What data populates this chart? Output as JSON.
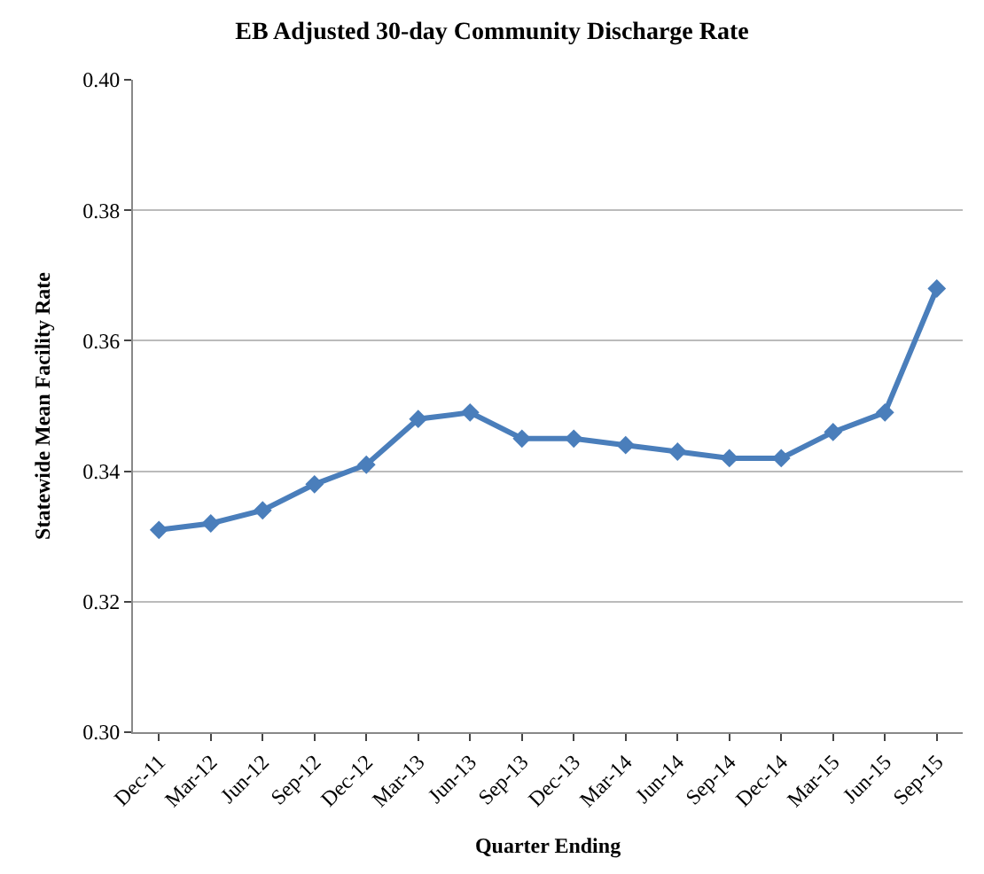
{
  "chart_data": {
    "type": "line",
    "title": "EB Adjusted 30-day Community Discharge Rate",
    "xlabel": "Quarter Ending",
    "ylabel": "Statewide Mean Facility Rate",
    "categories": [
      "Dec-11",
      "Mar-12",
      "Jun-12",
      "Sep-12",
      "Dec-12",
      "Mar-13",
      "Jun-13",
      "Sep-13",
      "Dec-13",
      "Mar-14",
      "Jun-14",
      "Sep-14",
      "Dec-14",
      "Mar-15",
      "Jun-15",
      "Sep-15"
    ],
    "series": [
      {
        "color": "#4a7ebb",
        "values": [
          0.331,
          0.332,
          0.334,
          0.338,
          0.341,
          0.348,
          0.349,
          0.345,
          0.345,
          0.344,
          0.343,
          0.342,
          0.342,
          0.346,
          0.349,
          0.368
        ]
      }
    ],
    "ylim": [
      0.3,
      0.4
    ],
    "yticks": [
      {
        "value": 0.3,
        "label": "0.30"
      },
      {
        "value": 0.32,
        "label": "0.32"
      },
      {
        "value": 0.34,
        "label": "0.34"
      },
      {
        "value": 0.36,
        "label": "0.36"
      },
      {
        "value": 0.38,
        "label": "0.38"
      },
      {
        "value": 0.4,
        "label": "0.40"
      }
    ],
    "grid": "y",
    "marker": "diamond",
    "line_style": "solid"
  }
}
